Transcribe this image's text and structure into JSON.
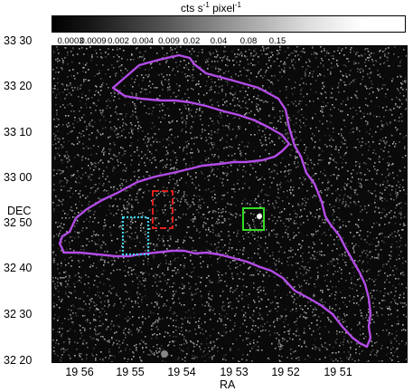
{
  "colorbar": {
    "unit_label": "cts s",
    "unit_exp1": "-1",
    "unit_mid": " pixel",
    "unit_exp2": "-1",
    "ticks": [
      "0.0003",
      "0.0009",
      "0.002",
      "0.004",
      "0.009",
      "0.02",
      "0.04",
      "0.08",
      "0.15"
    ]
  },
  "axes": {
    "y_title": "DEC",
    "x_title": "RA",
    "dec_ticks": [
      "33 30",
      "33 20",
      "33 10",
      "33 00",
      "32 50",
      "32 40",
      "32 30",
      "32 20"
    ],
    "ra_ticks": [
      "19 56",
      "19 55",
      "19 54",
      "19 53",
      "19 52",
      "19 51"
    ]
  },
  "overlay": {
    "contour_color": "#b44ce8",
    "region_red_color": "#e0201e",
    "region_cyan_color": "#3fd0e8",
    "region_green_color": "#33dd22"
  }
}
